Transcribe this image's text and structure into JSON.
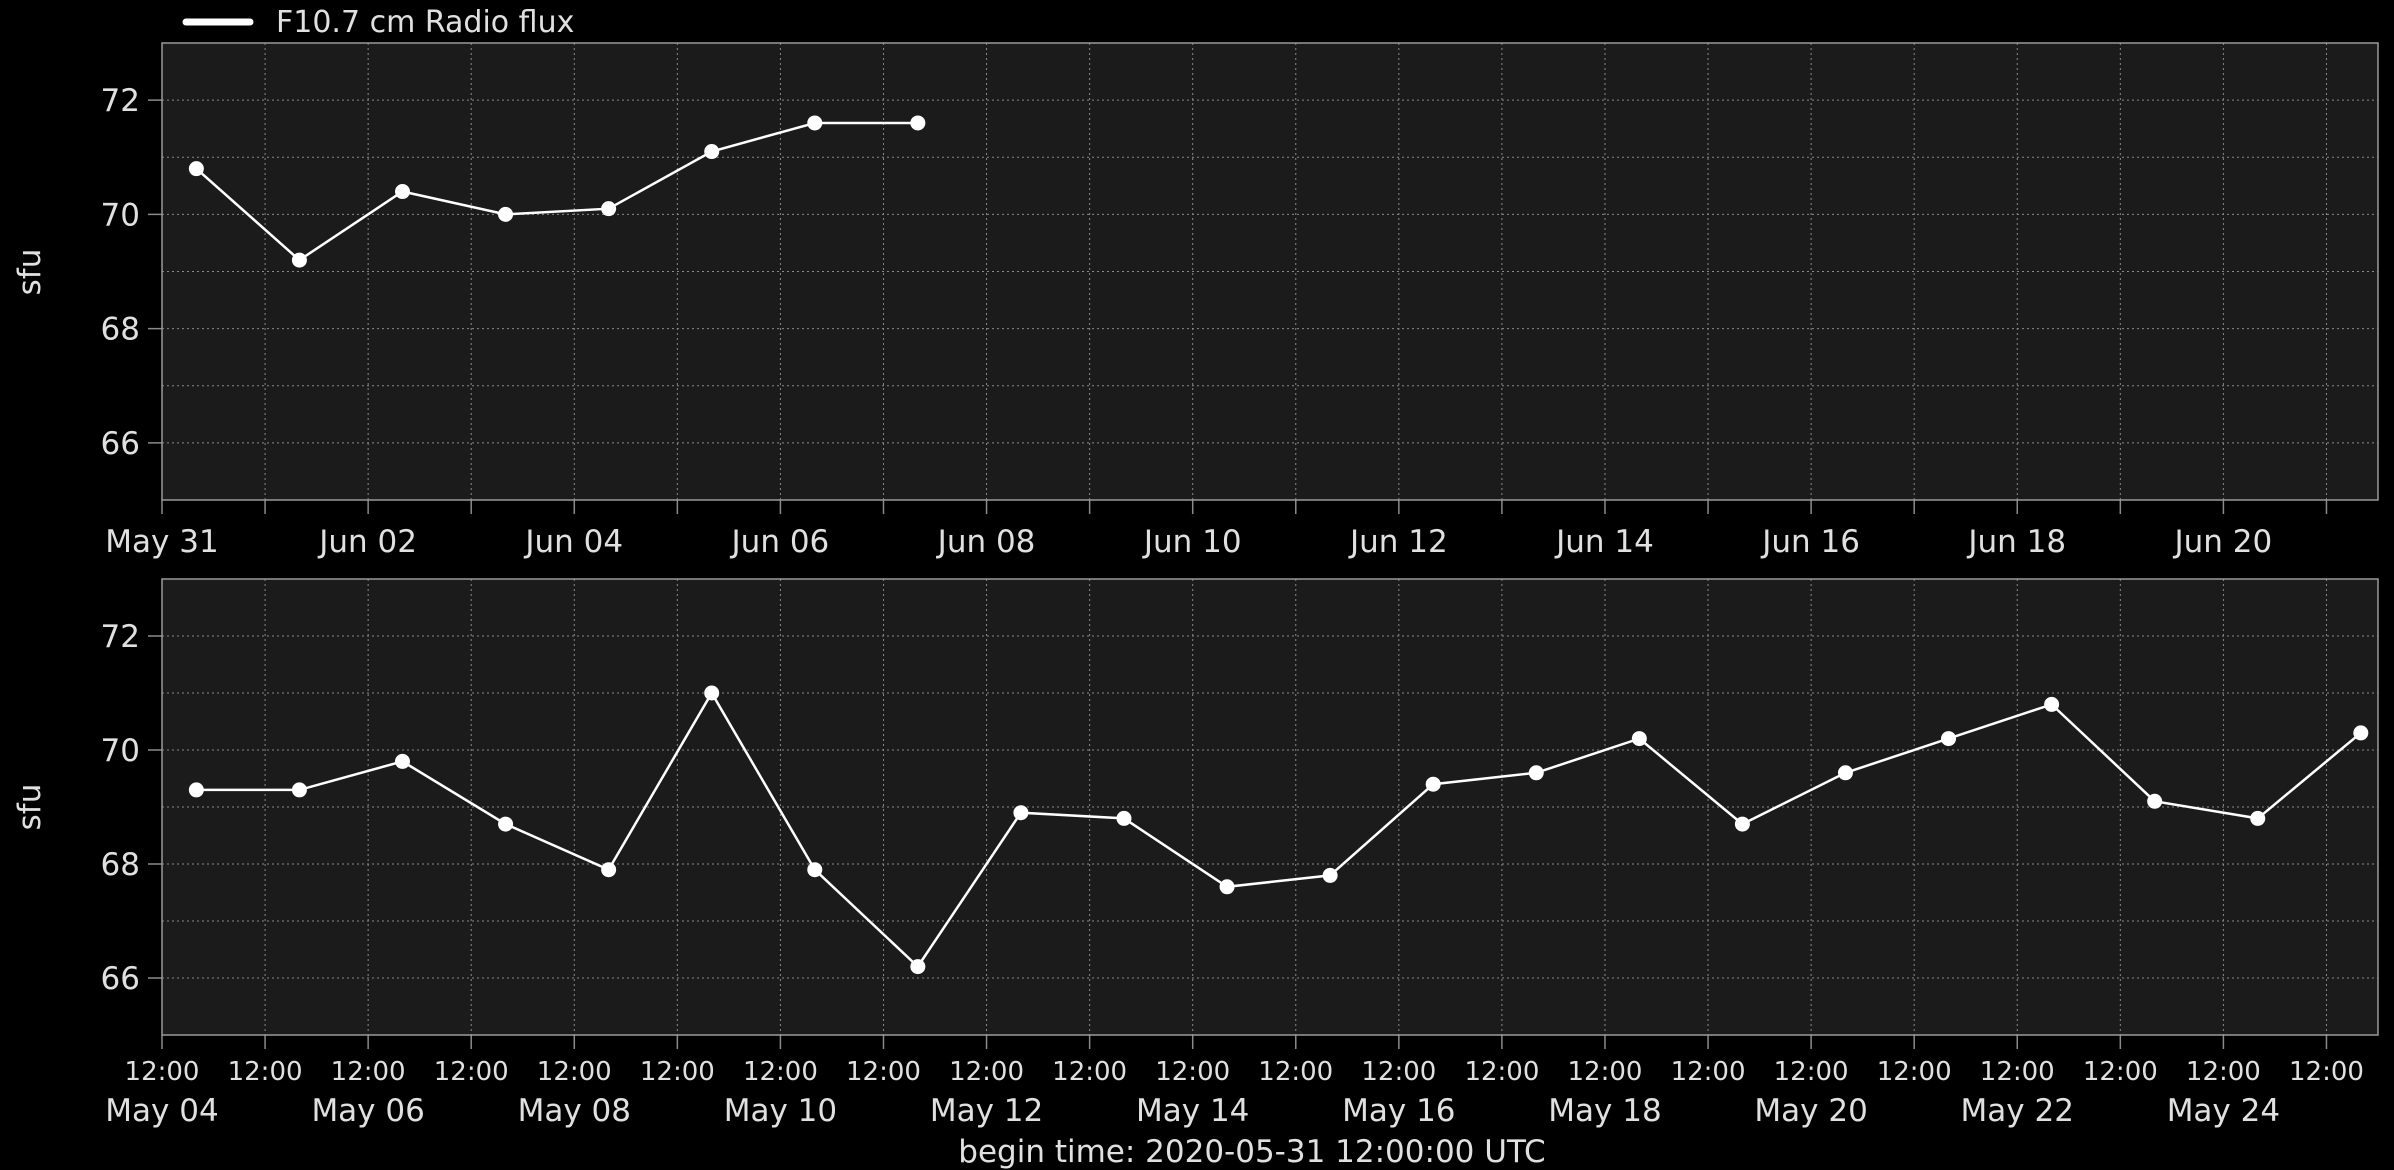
{
  "legend": {
    "label": "F10.7 cm Radio flux"
  },
  "footer": {
    "begin_time": "begin time: 2020-05-31 12:00:00 UTC"
  },
  "colors": {
    "background": "#000000",
    "plot_bg": "#1b1b1b",
    "grid": "#8a8a8a",
    "line": "#ffffff",
    "text": "#e6e6e6"
  },
  "chart_data": [
    {
      "type": "line",
      "title": "",
      "ylabel": "sfu",
      "ylim": [
        65,
        73
      ],
      "yticks": [
        66,
        68,
        70,
        72
      ],
      "xlim": [
        "2020-05-31 00:00",
        "2020-06-21 12:00"
      ],
      "major_tick_labels": [
        {
          "x": "2020-05-31 00:00",
          "label": "May 31"
        },
        {
          "x": "2020-06-02 00:00",
          "label": "Jun 02"
        },
        {
          "x": "2020-06-04 00:00",
          "label": "Jun 04"
        },
        {
          "x": "2020-06-06 00:00",
          "label": "Jun 06"
        },
        {
          "x": "2020-06-08 00:00",
          "label": "Jun 08"
        },
        {
          "x": "2020-06-10 00:00",
          "label": "Jun 10"
        },
        {
          "x": "2020-06-12 00:00",
          "label": "Jun 12"
        },
        {
          "x": "2020-06-14 00:00",
          "label": "Jun 14"
        },
        {
          "x": "2020-06-16 00:00",
          "label": "Jun 16"
        },
        {
          "x": "2020-06-18 00:00",
          "label": "Jun 18"
        },
        {
          "x": "2020-06-20 00:00",
          "label": "Jun 20"
        }
      ],
      "minor_tick_labels": [],
      "grid": true,
      "series": [
        {
          "name": "F10.7 cm Radio flux",
          "x": [
            "2020-05-31 08:00",
            "2020-06-01 08:00",
            "2020-06-02 08:00",
            "2020-06-03 08:00",
            "2020-06-04 08:00",
            "2020-06-05 08:00",
            "2020-06-06 08:00",
            "2020-06-07 08:00"
          ],
          "y": [
            70.8,
            69.2,
            70.4,
            70.0,
            70.1,
            71.1,
            71.6,
            71.6
          ]
        }
      ]
    },
    {
      "type": "line",
      "title": "",
      "ylabel": "sfu",
      "ylim": [
        65,
        73
      ],
      "yticks": [
        66,
        68,
        70,
        72
      ],
      "xlim": [
        "2020-05-04 00:00",
        "2020-05-25 12:00"
      ],
      "major_tick_labels": [
        {
          "x": "2020-05-04 00:00",
          "label": "May 04"
        },
        {
          "x": "2020-05-06 00:00",
          "label": "May 06"
        },
        {
          "x": "2020-05-08 00:00",
          "label": "May 08"
        },
        {
          "x": "2020-05-10 00:00",
          "label": "May 10"
        },
        {
          "x": "2020-05-12 00:00",
          "label": "May 12"
        },
        {
          "x": "2020-05-14 00:00",
          "label": "May 14"
        },
        {
          "x": "2020-05-16 00:00",
          "label": "May 16"
        },
        {
          "x": "2020-05-18 00:00",
          "label": "May 18"
        },
        {
          "x": "2020-05-20 00:00",
          "label": "May 20"
        },
        {
          "x": "2020-05-22 00:00",
          "label": "May 22"
        },
        {
          "x": "2020-05-24 00:00",
          "label": "May 24"
        }
      ],
      "minor_tick_labels": [
        {
          "x": "2020-05-04 00:00",
          "label": "12:00"
        },
        {
          "x": "2020-05-05 00:00",
          "label": "12:00"
        },
        {
          "x": "2020-05-06 00:00",
          "label": "12:00"
        },
        {
          "x": "2020-05-07 00:00",
          "label": "12:00"
        },
        {
          "x": "2020-05-08 00:00",
          "label": "12:00"
        },
        {
          "x": "2020-05-09 00:00",
          "label": "12:00"
        },
        {
          "x": "2020-05-10 00:00",
          "label": "12:00"
        },
        {
          "x": "2020-05-11 00:00",
          "label": "12:00"
        },
        {
          "x": "2020-05-12 00:00",
          "label": "12:00"
        },
        {
          "x": "2020-05-13 00:00",
          "label": "12:00"
        },
        {
          "x": "2020-05-14 00:00",
          "label": "12:00"
        },
        {
          "x": "2020-05-15 00:00",
          "label": "12:00"
        },
        {
          "x": "2020-05-16 00:00",
          "label": "12:00"
        },
        {
          "x": "2020-05-17 00:00",
          "label": "12:00"
        },
        {
          "x": "2020-05-18 00:00",
          "label": "12:00"
        },
        {
          "x": "2020-05-19 00:00",
          "label": "12:00"
        },
        {
          "x": "2020-05-20 00:00",
          "label": "12:00"
        },
        {
          "x": "2020-05-21 00:00",
          "label": "12:00"
        },
        {
          "x": "2020-05-22 00:00",
          "label": "12:00"
        },
        {
          "x": "2020-05-23 00:00",
          "label": "12:00"
        },
        {
          "x": "2020-05-24 00:00",
          "label": "12:00"
        },
        {
          "x": "2020-05-25 00:00",
          "label": "12:00"
        }
      ],
      "grid": true,
      "series": [
        {
          "name": "F10.7 cm Radio flux",
          "x": [
            "2020-05-04 08:00",
            "2020-05-05 08:00",
            "2020-05-06 08:00",
            "2020-05-07 08:00",
            "2020-05-08 08:00",
            "2020-05-09 08:00",
            "2020-05-10 08:00",
            "2020-05-11 08:00",
            "2020-05-12 08:00",
            "2020-05-13 08:00",
            "2020-05-14 08:00",
            "2020-05-15 08:00",
            "2020-05-16 08:00",
            "2020-05-17 08:00",
            "2020-05-18 08:00",
            "2020-05-19 08:00",
            "2020-05-20 08:00",
            "2020-05-21 08:00",
            "2020-05-22 08:00",
            "2020-05-23 08:00",
            "2020-05-24 08:00",
            "2020-05-25 08:00"
          ],
          "y": [
            69.3,
            69.3,
            69.8,
            68.7,
            67.9,
            71.0,
            67.9,
            66.2,
            68.9,
            68.8,
            67.6,
            67.8,
            69.4,
            69.6,
            70.2,
            68.7,
            69.6,
            70.2,
            70.8,
            69.1,
            68.8,
            70.3
          ]
        }
      ]
    }
  ]
}
